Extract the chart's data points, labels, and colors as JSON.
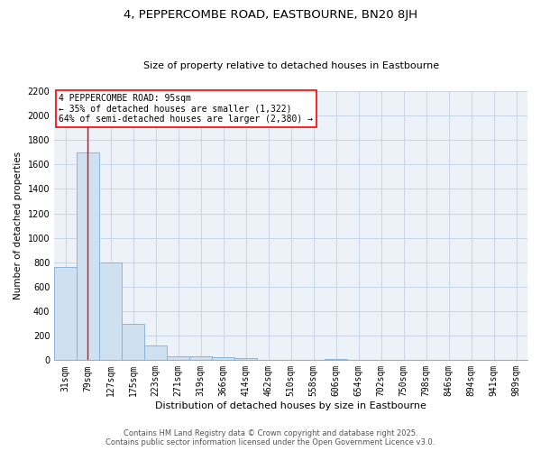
{
  "title": "4, PEPPERCOMBE ROAD, EASTBOURNE, BN20 8JH",
  "subtitle": "Size of property relative to detached houses in Eastbourne",
  "xlabel": "Distribution of detached houses by size in Eastbourne",
  "ylabel": "Number of detached properties",
  "categories": [
    "31sqm",
    "79sqm",
    "127sqm",
    "175sqm",
    "223sqm",
    "271sqm",
    "319sqm",
    "366sqm",
    "414sqm",
    "462sqm",
    "510sqm",
    "558sqm",
    "606sqm",
    "654sqm",
    "702sqm",
    "750sqm",
    "798sqm",
    "846sqm",
    "894sqm",
    "941sqm",
    "989sqm"
  ],
  "values": [
    760,
    1700,
    800,
    300,
    120,
    35,
    30,
    25,
    15,
    0,
    0,
    0,
    10,
    0,
    0,
    0,
    0,
    0,
    0,
    0,
    0
  ],
  "bar_color": "#cfe0f0",
  "bar_edge_color": "#7bafd4",
  "red_line_x": 0.97,
  "annotation_text": "4 PEPPERCOMBE ROAD: 95sqm\n← 35% of detached houses are smaller (1,322)\n64% of semi-detached houses are larger (2,380) →",
  "annotation_box_color": "white",
  "annotation_box_edge_color": "red",
  "ylim": [
    0,
    2200
  ],
  "yticks": [
    0,
    200,
    400,
    600,
    800,
    1000,
    1200,
    1400,
    1600,
    1800,
    2000,
    2200
  ],
  "grid_color": "#c8d4e8",
  "background_color": "#edf2f9",
  "footer_line1": "Contains HM Land Registry data © Crown copyright and database right 2025.",
  "footer_line2": "Contains public sector information licensed under the Open Government Licence v3.0.",
  "title_fontsize": 9.5,
  "subtitle_fontsize": 8,
  "xlabel_fontsize": 8,
  "ylabel_fontsize": 7.5,
  "tick_fontsize": 7,
  "annotation_fontsize": 7,
  "footer_fontsize": 6
}
